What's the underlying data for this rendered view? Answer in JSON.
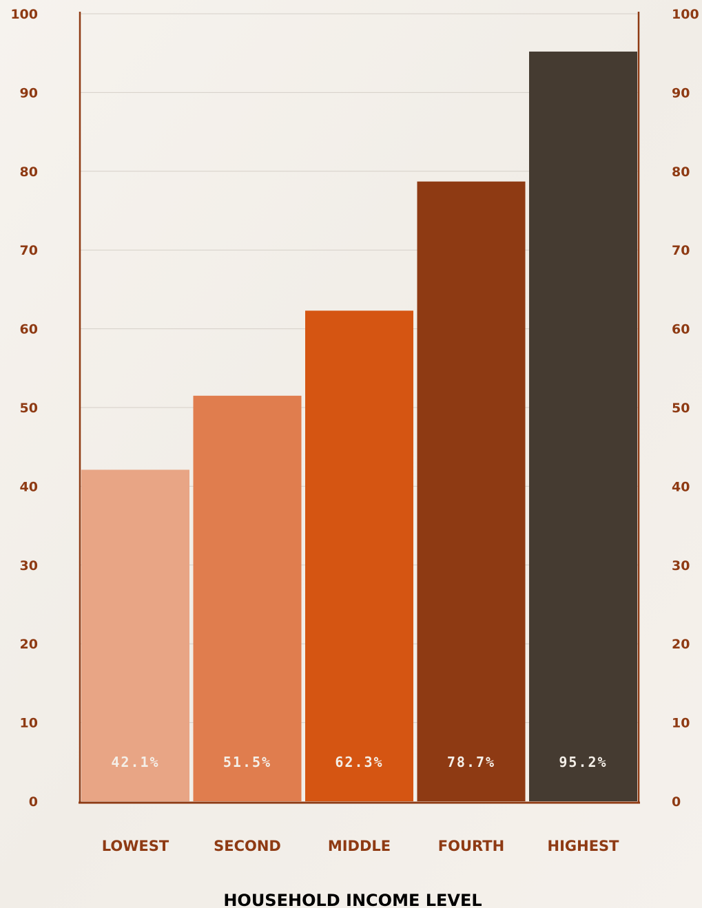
{
  "chart_data": {
    "type": "bar",
    "categories": [
      "LOWEST",
      "SECOND",
      "MIDDLE",
      "FOURTH",
      "HIGHEST"
    ],
    "values": [
      42.1,
      51.5,
      62.3,
      78.7,
      95.2
    ],
    "data_labels": [
      "42.1%",
      "51.5%",
      "62.3%",
      "78.7%",
      "95.2%"
    ],
    "xlabel": "HOUSEHOLD  INCOME LEVEL",
    "ylabel": "",
    "ylim": [
      0,
      100
    ],
    "yticks": [
      "0",
      "10",
      "20",
      "30",
      "40",
      "50",
      "60",
      "70",
      "80",
      "90",
      "100"
    ],
    "grid": true,
    "colors": {
      "bars": [
        "#e8a585",
        "#e07d4e",
        "#d55512",
        "#8e3a13",
        "#453b31"
      ],
      "axis": "#8e3a13",
      "tick_text": "#8e3a13",
      "data_label_text": "#f4efe8",
      "grid": "#d5cfc8",
      "background": "#f4f0ea"
    }
  }
}
